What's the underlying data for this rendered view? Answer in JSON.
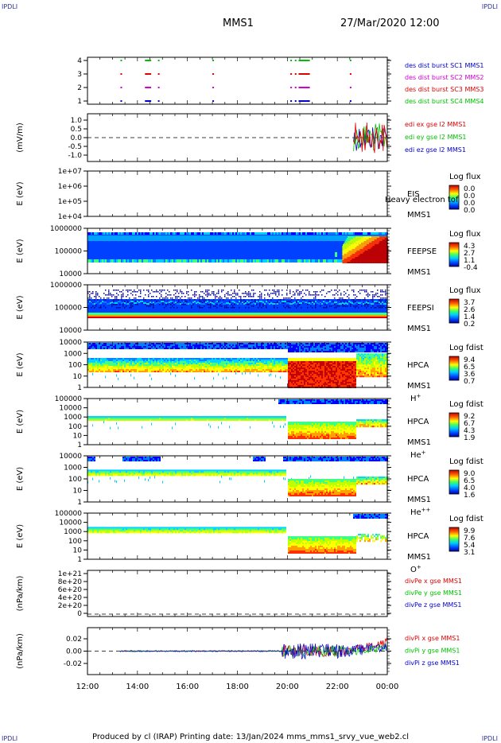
{
  "corners": {
    "tl": "IPDLI",
    "tr": "IPDLI",
    "bl": "IPDLI",
    "br": "IPDLI"
  },
  "header": {
    "spacecraft": "MMS1",
    "datetime": "27/Mar/2020 12:00"
  },
  "footer": {
    "text": "Produced by cl (IRAP)   Printing date: 13/Jan/2024   mms_mms1_srvy_vue_web2.cl"
  },
  "colors": {
    "red": "#e00000",
    "green": "#00c000",
    "blue": "#0000d0",
    "magenta": "#d000d0",
    "rainbow": [
      "#0000a0",
      "#0000ff",
      "#0080ff",
      "#00d0ff",
      "#40ff80",
      "#c0ff00",
      "#ffff00",
      "#ffa000",
      "#ff3000",
      "#c00000"
    ]
  },
  "chart_data": [
    {
      "type": "scatter",
      "id": "p1",
      "ylabel": "",
      "yticks": [
        "1",
        "2",
        "3",
        "4"
      ],
      "legend": [
        {
          "label": "des dist burst SC1 MMS1",
          "color": "#0000d0"
        },
        {
          "label": "des dist burst SC2 MMS2",
          "color": "#d000d0"
        },
        {
          "label": "des dist burst SC3 MMS3",
          "color": "#e00000"
        },
        {
          "label": "des dist burst SC4 MMS4",
          "color": "#00c000"
        }
      ],
      "segments": [
        {
          "row": 4,
          "x": [
            [
              13.32,
              13.38
            ],
            [
              14.3,
              14.55
            ],
            [
              14.82,
              14.86
            ],
            [
              17.0,
              17.05
            ],
            [
              20.12,
              20.18
            ],
            [
              20.3,
              20.35
            ],
            [
              20.45,
              20.9
            ],
            [
              22.5,
              22.55
            ]
          ]
        },
        {
          "row": 3,
          "x": [
            [
              13.32,
              13.38
            ],
            [
              14.3,
              14.55
            ],
            [
              14.82,
              14.86
            ],
            [
              17.0,
              17.05
            ],
            [
              20.12,
              20.18
            ],
            [
              20.3,
              20.35
            ],
            [
              20.45,
              20.9
            ],
            [
              22.5,
              22.55
            ]
          ]
        },
        {
          "row": 2,
          "x": [
            [
              13.32,
              13.38
            ],
            [
              14.3,
              14.55
            ],
            [
              14.82,
              14.86
            ],
            [
              17.0,
              17.05
            ],
            [
              20.12,
              20.18
            ],
            [
              20.3,
              20.35
            ],
            [
              20.45,
              20.9
            ],
            [
              22.5,
              22.55
            ]
          ]
        },
        {
          "row": 1,
          "x": [
            [
              13.32,
              13.38
            ],
            [
              14.3,
              14.55
            ],
            [
              14.82,
              14.86
            ],
            [
              17.0,
              17.05
            ],
            [
              20.12,
              20.18
            ],
            [
              20.3,
              20.35
            ],
            [
              20.45,
              20.9
            ],
            [
              22.5,
              22.55
            ]
          ]
        }
      ]
    },
    {
      "type": "line",
      "id": "p2",
      "ylabel": "(mV/m)",
      "yticks": [
        "1.0",
        "0.5",
        "0.0",
        "-0.5",
        "-1.0"
      ],
      "ylim": [
        -1.4,
        1.4
      ],
      "legend": [
        {
          "label": "edi ex gse l2 MMS1",
          "color": "#e00000"
        },
        {
          "label": "edi ey gse l2 MMS1",
          "color": "#00c000"
        },
        {
          "label": "edi ez gse l2 MMS1",
          "color": "#0000d0"
        }
      ],
      "active_x": [
        22.65,
        24.0
      ]
    },
    {
      "type": "heatmap",
      "id": "p3",
      "ylabel": "E (eV)",
      "yticks": [
        "1e+07",
        "1e+06",
        "1e+05",
        "1e+04"
      ],
      "inst": "EIS",
      "sc": "MMS1",
      "scale": "Log flux",
      "cbar": [
        "0.0",
        "0.0",
        "0.0",
        "0.0"
      ],
      "note": "Heavy electron tof"
    },
    {
      "type": "heatmap",
      "id": "p4",
      "ylabel": "E (eV)",
      "yticks": [
        "1000000",
        "100000",
        "10000"
      ],
      "inst": "FEEPSE",
      "sc": "MMS1",
      "scale": "Log flux",
      "cbar": [
        "4.3",
        "2.7",
        "1.1",
        "-0.4"
      ]
    },
    {
      "type": "heatmap",
      "id": "p5",
      "ylabel": "E (eV)",
      "yticks": [
        "1000000",
        "100000",
        "10000"
      ],
      "inst": "FEEPSI",
      "sc": "MMS1",
      "scale": "Log flux",
      "cbar": [
        "3.7",
        "2.6",
        "1.4",
        "0.2"
      ]
    },
    {
      "type": "heatmap",
      "id": "p6",
      "ylabel": "E (eV)",
      "yticks": [
        "10000",
        "1000",
        "100",
        "10",
        "1"
      ],
      "inst": "HPCA",
      "sc": "MMS1",
      "species": "H",
      "sup": "+",
      "scale": "Log fdist",
      "cbar": [
        "9.4",
        "6.5",
        "3.6",
        "0.7"
      ]
    },
    {
      "type": "heatmap",
      "id": "p7",
      "ylabel": "E (eV)",
      "yticks": [
        "100000",
        "10000",
        "1000",
        "100",
        "10",
        "1"
      ],
      "inst": "HPCA",
      "sc": "MMS1",
      "species": "He",
      "sup": "+",
      "scale": "Log fdist",
      "cbar": [
        "9.2",
        "6.7",
        "4.3",
        "1.9"
      ]
    },
    {
      "type": "heatmap",
      "id": "p8",
      "ylabel": "E (eV)",
      "yticks": [
        "10000",
        "1000",
        "100",
        "10",
        "1"
      ],
      "inst": "HPCA",
      "sc": "MMS1",
      "species": "He",
      "sup": "++",
      "scale": "Log fdist",
      "cbar": [
        "9.0",
        "6.5",
        "4.0",
        "1.6"
      ]
    },
    {
      "type": "heatmap",
      "id": "p9",
      "ylabel": "E (eV)",
      "yticks": [
        "100000",
        "10000",
        "1000",
        "100",
        "10",
        "1"
      ],
      "inst": "HPCA",
      "sc": "MMS1",
      "species": "O",
      "sup": "+",
      "scale": "Log fdist",
      "cbar": [
        "9.9",
        "7.6",
        "5.4",
        "3.1"
      ]
    },
    {
      "type": "line",
      "id": "p10",
      "ylabel": "(nPa/km)",
      "yticks": [
        "1e+21",
        "8e+20",
        "6e+20",
        "4e+20",
        "2e+20",
        "0"
      ],
      "legend": [
        {
          "label": "divPe x gse MMS1",
          "color": "#e00000"
        },
        {
          "label": "divPe y gse MMS1",
          "color": "#00c000"
        },
        {
          "label": "divPe z gse MMS1",
          "color": "#0000d0"
        }
      ]
    },
    {
      "type": "line",
      "id": "p11",
      "ylabel": "(nPa/km)",
      "yticks": [
        "0.02",
        "0.00",
        "-0.02"
      ],
      "ylim": [
        -0.03,
        0.03
      ],
      "legend": [
        {
          "label": "divPi x gse MMS1",
          "color": "#e00000"
        },
        {
          "label": "divPi y gse MMS1",
          "color": "#00c000"
        },
        {
          "label": "divPi z gse MMS1",
          "color": "#0000d0"
        }
      ],
      "active_x": [
        13.3,
        24.0
      ]
    }
  ],
  "xaxis": {
    "ticks": [
      "12:00",
      "14:00",
      "16:00",
      "18:00",
      "20:00",
      "22:00",
      "00:00"
    ],
    "range_hours": [
      12,
      24
    ]
  }
}
